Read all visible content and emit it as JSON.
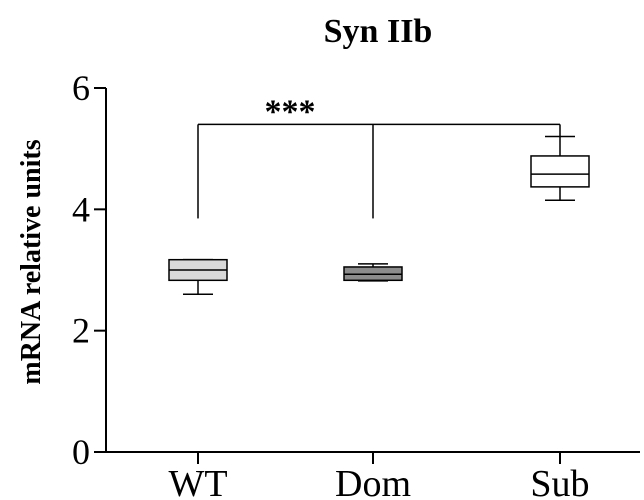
{
  "chart_data": {
    "type": "box",
    "title": "Syn IIb",
    "xlabel": "",
    "ylabel": "mRNA relative units",
    "ylim": [
      0,
      6
    ],
    "yticks": [
      0,
      2,
      4,
      6
    ],
    "ytick_labels": [
      "0",
      "2",
      "4",
      "6"
    ],
    "categories": [
      "WT",
      "Dom",
      "Sub"
    ],
    "boxes": [
      {
        "category": "WT",
        "min": 2.6,
        "q1": 2.83,
        "median": 3.0,
        "q3": 3.17,
        "max": 3.17,
        "fill": "#d9d9d9"
      },
      {
        "category": "Dom",
        "min": 2.82,
        "q1": 2.83,
        "median": 2.93,
        "q3": 3.05,
        "max": 3.1,
        "fill": "#8c8c8c"
      },
      {
        "category": "Sub",
        "min": 4.15,
        "q1": 4.37,
        "median": 4.58,
        "q3": 4.88,
        "max": 5.2,
        "fill": "#ffffff"
      }
    ],
    "significance": {
      "label": "***",
      "bracket_y": 5.4,
      "drop_y": 3.85,
      "spans": [
        "WT",
        "Dom",
        "Sub"
      ]
    },
    "grid": false,
    "legend": "none"
  }
}
